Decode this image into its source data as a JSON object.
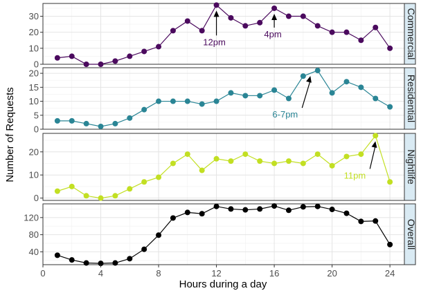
{
  "chart_data": {
    "type": "line",
    "xlabel": "Hours during a day",
    "ylabel": "Number of Requests",
    "xlim": [
      0,
      25
    ],
    "x_ticks": [
      0,
      4,
      8,
      12,
      16,
      20,
      24
    ],
    "grid": true,
    "facet_strip_color": "#d9eaf3",
    "x": [
      1,
      2,
      3,
      4,
      5,
      6,
      7,
      8,
      9,
      10,
      11,
      12,
      13,
      14,
      15,
      16,
      17,
      18,
      19,
      20,
      21,
      22,
      23,
      24
    ],
    "panels": [
      {
        "name": "Commercial",
        "color": "#4b0a5e",
        "ylim": [
          0,
          38
        ],
        "y_ticks": [
          0,
          10,
          20,
          30
        ],
        "values": [
          4,
          5,
          0,
          0,
          2,
          5,
          8,
          11,
          21,
          27,
          21,
          37,
          29,
          24,
          26,
          35,
          30,
          30,
          24,
          20,
          20,
          15,
          23,
          10
        ],
        "annotations": [
          {
            "text": "12pm",
            "x": 12
          },
          {
            "text": "4pm",
            "x": 16
          }
        ]
      },
      {
        "name": "Residential",
        "color": "#2a8595",
        "ylim": [
          0,
          22
        ],
        "y_ticks": [
          0,
          5,
          10,
          15,
          20
        ],
        "values": [
          3,
          3,
          2,
          1,
          2,
          4,
          7,
          10,
          10,
          10,
          9,
          10,
          13,
          12,
          12,
          14,
          11,
          19,
          21,
          13,
          17,
          15,
          11,
          8
        ],
        "annotations": [
          {
            "text": "6-7pm",
            "x": 18.5
          }
        ]
      },
      {
        "name": "Nightlife",
        "color": "#c2df22",
        "ylim": [
          -1,
          28
        ],
        "y_ticks": [
          0,
          10,
          20
        ],
        "values": [
          3,
          5,
          1,
          0,
          1,
          4,
          7,
          9,
          15,
          19,
          12,
          17,
          16,
          19,
          16,
          15,
          16,
          15,
          19,
          14,
          18,
          19,
          27,
          7
        ],
        "annotations": [
          {
            "text": "11pm",
            "x": 23
          }
        ]
      },
      {
        "name": "Overall",
        "color": "#000000",
        "ylim": [
          10,
          152
        ],
        "y_ticks": [
          40,
          80,
          120
        ],
        "values": [
          32,
          21,
          14,
          13,
          14,
          24,
          46,
          79,
          119,
          132,
          129,
          146,
          140,
          138,
          140,
          147,
          137,
          145,
          146,
          139,
          130,
          111,
          112,
          57
        ],
        "annotations": []
      }
    ]
  }
}
